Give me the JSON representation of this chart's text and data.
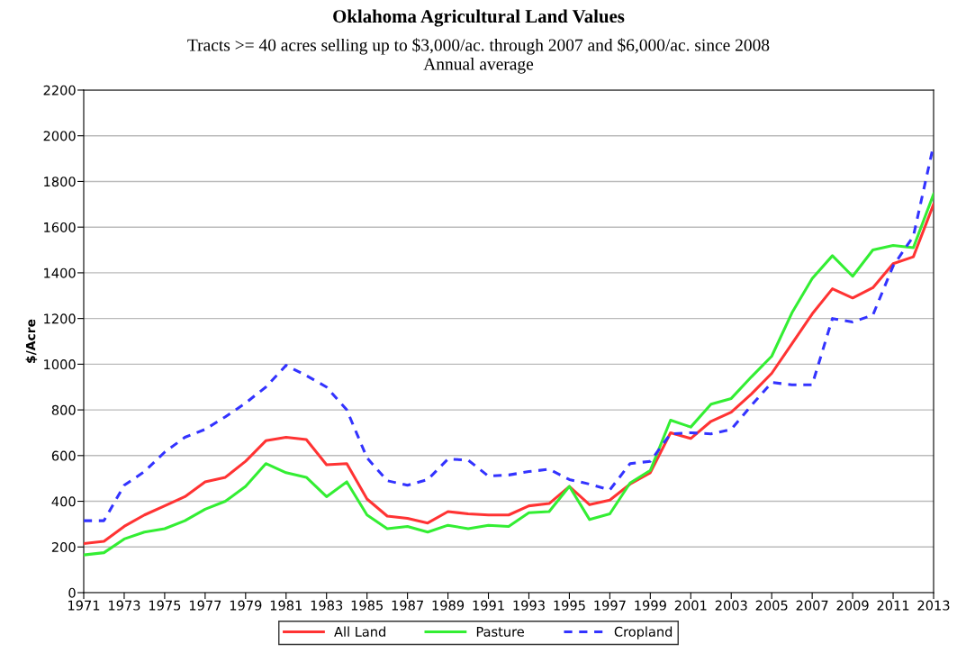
{
  "chart_data": {
    "type": "line",
    "title": "Oklahoma Agricultural Land Values",
    "subtitle": "Tracts >= 40 acres selling up to $3,000/ac. through 2007 and $6,000/ac. since 2008\nAnnual average",
    "ylabel": "$/Acre",
    "x": [
      1971,
      1972,
      1973,
      1974,
      1975,
      1976,
      1977,
      1978,
      1979,
      1980,
      1981,
      1982,
      1983,
      1984,
      1985,
      1986,
      1987,
      1988,
      1989,
      1990,
      1991,
      1992,
      1993,
      1994,
      1995,
      1996,
      1997,
      1998,
      1999,
      2000,
      2001,
      2002,
      2003,
      2004,
      2005,
      2006,
      2007,
      2008,
      2009,
      2010,
      2011,
      2012,
      2013
    ],
    "series": [
      {
        "name": "All Land",
        "color": "#ff3333",
        "line_style": "solid",
        "values": [
          215,
          225,
          290,
          340,
          380,
          420,
          485,
          505,
          575,
          665,
          680,
          670,
          560,
          565,
          410,
          335,
          325,
          305,
          355,
          345,
          340,
          340,
          380,
          390,
          465,
          385,
          405,
          475,
          525,
          700,
          675,
          750,
          790,
          870,
          960,
          1090,
          1220,
          1330,
          1290,
          1335,
          1440,
          1470,
          1700
        ]
      },
      {
        "name": "Pasture",
        "color": "#33ee33",
        "line_style": "solid",
        "values": [
          165,
          175,
          235,
          265,
          280,
          315,
          365,
          400,
          465,
          565,
          525,
          505,
          420,
          485,
          340,
          280,
          290,
          265,
          295,
          280,
          295,
          290,
          350,
          355,
          465,
          320,
          345,
          480,
          535,
          755,
          725,
          825,
          850,
          945,
          1035,
          1225,
          1375,
          1475,
          1385,
          1500,
          1520,
          1510,
          1745
        ]
      },
      {
        "name": "Cropland",
        "color": "#3333ff",
        "line_style": "dashed",
        "values": [
          315,
          315,
          470,
          530,
          615,
          680,
          715,
          770,
          830,
          900,
          995,
          950,
          900,
          800,
          590,
          490,
          470,
          495,
          585,
          580,
          510,
          515,
          530,
          540,
          495,
          475,
          450,
          565,
          575,
          695,
          700,
          695,
          715,
          820,
          920,
          910,
          910,
          1200,
          1185,
          1215,
          1430,
          1560,
          1960
        ]
      }
    ],
    "xlim": [
      1971,
      2013
    ],
    "xticks": [
      1971,
      1973,
      1975,
      1977,
      1979,
      1981,
      1983,
      1985,
      1987,
      1989,
      1991,
      1993,
      1995,
      1997,
      1999,
      2001,
      2003,
      2005,
      2007,
      2009,
      2011,
      2013
    ],
    "ylim": [
      0,
      2200
    ],
    "yticks": [
      0,
      200,
      400,
      600,
      800,
      1000,
      1200,
      1400,
      1600,
      1800,
      2000,
      2200
    ],
    "grid": "y",
    "legend": "bottom",
    "marker": "none"
  }
}
